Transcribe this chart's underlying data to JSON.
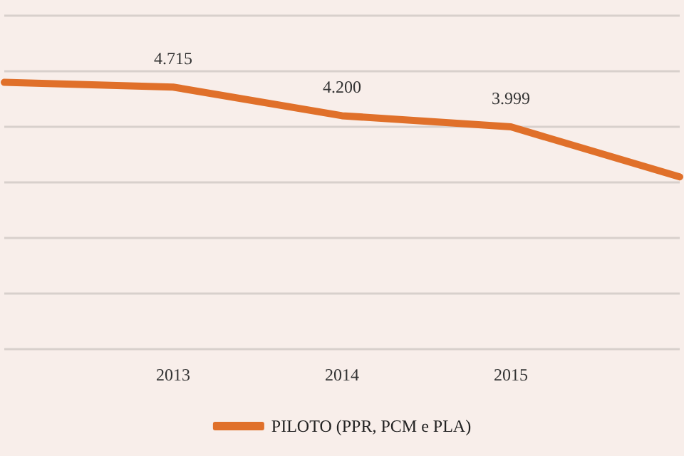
{
  "chart_data": {
    "type": "line",
    "categories": [
      null,
      "2013",
      "2014",
      "2015",
      null
    ],
    "series": [
      {
        "name": "PILOTO (PPR, PCM e PLA)",
        "color": "#e0702a",
        "values": [
          4.8,
          4.715,
          4.2,
          3.999,
          3.1
        ],
        "value_labels": [
          null,
          "4.715",
          "4.200",
          "3.999",
          null
        ]
      }
    ],
    "ylim": [
      0,
      6
    ],
    "yticks": [
      {
        "value": 0,
        "label": null
      },
      {
        "value": 1,
        "label": null
      },
      {
        "value": 2,
        "label": null
      },
      {
        "value": 3,
        "label": null
      },
      {
        "value": 4,
        "label": null
      },
      {
        "value": 5,
        "label": null
      },
      {
        "value": 6,
        "label": null
      }
    ],
    "tick_labels": "x",
    "grid": "y",
    "legend": "bottom",
    "marker": "none"
  }
}
